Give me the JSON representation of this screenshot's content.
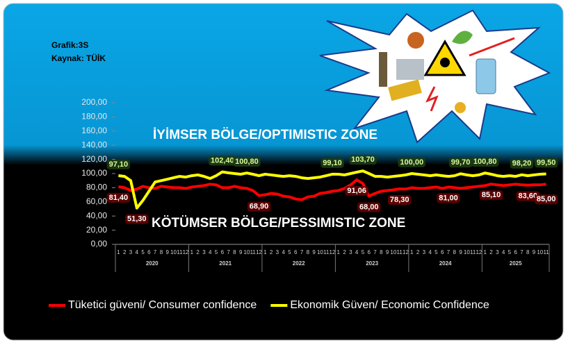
{
  "chart_data": {
    "type": "line",
    "source_lines": [
      "Grafik:3S",
      "Kaynak: TÜİK"
    ],
    "annotations": [
      "İYİMSER BÖLGE/OPTIMISTIC ZONE",
      "KÖTÜMSER BÖLGE/PESSIMISTIC ZONE"
    ],
    "categories": [
      "1",
      "2",
      "3",
      "4",
      "5",
      "6",
      "7",
      "8",
      "9",
      "10",
      "11",
      "12",
      "1",
      "2",
      "3",
      "4",
      "5",
      "6",
      "7",
      "8",
      "9",
      "10",
      "11",
      "12",
      "1",
      "2",
      "3",
      "4",
      "5",
      "6",
      "7",
      "8",
      "9",
      "10",
      "11",
      "12",
      "1",
      "2",
      "3",
      "4",
      "5",
      "6",
      "7",
      "8",
      "9",
      "10",
      "11",
      "12",
      "1",
      "2",
      "3",
      "4",
      "5",
      "6",
      "7",
      "8",
      "9",
      "10",
      "11",
      "12",
      "1",
      "2",
      "3",
      "4",
      "5",
      "6",
      "7",
      "8",
      "9",
      "10",
      "11"
    ],
    "years": [
      "2020",
      "2021",
      "2022",
      "2023",
      "2024",
      "2025"
    ],
    "ylim": [
      0,
      200
    ],
    "yticks": [
      {
        "value": 0,
        "label": "0,00"
      },
      {
        "value": 20,
        "label": "20,00"
      },
      {
        "value": 40,
        "label": "40,00"
      },
      {
        "value": 60,
        "label": "60,00"
      },
      {
        "value": 80,
        "label": "80,00"
      },
      {
        "value": 100,
        "label": "100,00"
      },
      {
        "value": 120,
        "label": "120,00"
      },
      {
        "value": 140,
        "label": "140,00"
      },
      {
        "value": 160,
        "label": "160,00"
      },
      {
        "value": 180,
        "label": "180,00"
      },
      {
        "value": 200,
        "label": "200,00"
      }
    ],
    "grid": false,
    "series": [
      {
        "name": "Tüketici güveni/ Consumer confidence",
        "color": "#ff0000",
        "values": [
          81.4,
          80,
          76,
          78,
          82,
          80,
          79,
          82,
          81,
          80,
          80,
          79,
          81,
          82,
          83,
          85,
          84,
          80,
          80,
          82,
          80,
          79,
          76,
          68.9,
          70,
          72,
          71,
          68,
          67,
          64,
          63,
          67,
          68,
          72,
          73,
          75,
          76,
          79,
          84,
          91.06,
          86,
          68.0,
          72,
          75,
          76,
          77,
          78.3,
          78,
          80,
          79,
          79,
          80,
          81,
          79,
          81.0,
          80,
          79,
          80,
          81,
          82,
          83,
          85.1,
          84,
          83,
          84,
          85,
          84,
          83.6,
          84,
          84,
          85.0
        ],
        "value_labels": [
          "81,40",
          null,
          null,
          null,
          null,
          null,
          null,
          null,
          null,
          null,
          null,
          null,
          null,
          null,
          null,
          null,
          null,
          null,
          null,
          null,
          null,
          null,
          null,
          "68,90",
          null,
          null,
          null,
          null,
          null,
          null,
          null,
          null,
          null,
          null,
          null,
          null,
          null,
          null,
          null,
          "91,06",
          null,
          "68,00",
          null,
          null,
          null,
          null,
          "78,30",
          null,
          null,
          null,
          null,
          null,
          null,
          null,
          "81,00",
          null,
          null,
          null,
          null,
          null,
          null,
          "85,10",
          null,
          null,
          null,
          null,
          null,
          "83,60",
          null,
          null,
          "85,00"
        ]
      },
      {
        "name": "Ekonomik Güven/ Economic Confidence",
        "color": "#ffff00",
        "values": [
          97.1,
          96,
          90,
          51.3,
          62,
          75,
          88,
          90,
          92,
          94,
          96,
          95,
          97,
          98,
          96,
          93,
          97,
          102.4,
          101,
          100,
          99,
          100.8,
          99,
          97,
          99,
          98,
          97,
          96,
          97,
          96,
          94,
          93,
          94,
          95,
          97,
          99.1,
          99,
          98,
          100,
          102,
          103.7,
          100,
          96,
          96,
          95,
          96,
          97,
          98,
          100.0,
          99,
          98,
          97,
          98,
          97,
          96,
          97,
          99.7,
          98,
          97,
          98,
          100.8,
          99,
          97,
          96,
          97,
          96,
          98.2,
          97,
          98,
          99,
          99.5
        ],
        "value_labels": [
          "97,10",
          null,
          null,
          "51,30",
          null,
          null,
          null,
          null,
          null,
          null,
          null,
          null,
          null,
          null,
          null,
          null,
          null,
          "102,40",
          null,
          null,
          null,
          "100,80",
          null,
          null,
          null,
          null,
          null,
          null,
          null,
          null,
          null,
          null,
          null,
          null,
          null,
          "99,10",
          null,
          null,
          null,
          null,
          "103,70",
          null,
          null,
          null,
          null,
          null,
          null,
          null,
          "100,00",
          null,
          null,
          null,
          null,
          null,
          null,
          null,
          "99,70",
          null,
          null,
          null,
          "100,80",
          null,
          null,
          null,
          null,
          null,
          "98,20",
          null,
          null,
          null,
          "99,50"
        ]
      }
    ]
  }
}
